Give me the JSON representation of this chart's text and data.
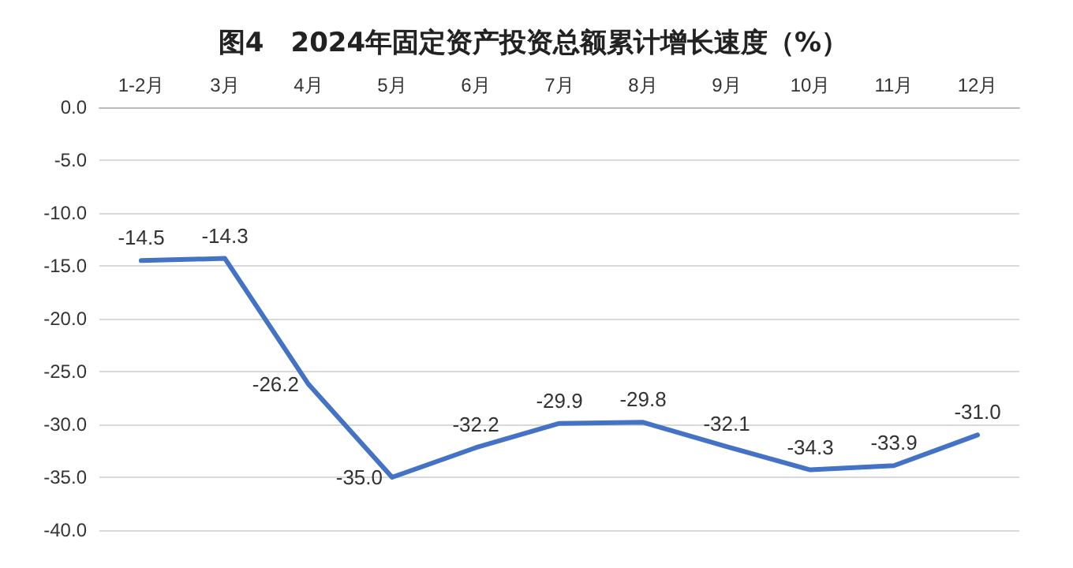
{
  "chart_data": {
    "type": "line",
    "title": "图4　2024年固定资产投资总额累计增长速度（%）",
    "categories": [
      "1-2月",
      "3月",
      "4月",
      "5月",
      "6月",
      "7月",
      "8月",
      "9月",
      "10月",
      "11月",
      "12月"
    ],
    "series": [
      {
        "color": "#4472c4",
        "values": [
          -14.5,
          -14.3,
          -26.2,
          -35.0,
          -32.2,
          -29.9,
          -29.8,
          -32.1,
          -34.3,
          -33.9,
          -31.0
        ],
        "value_labels": [
          "-14.5",
          "-14.3",
          "-26.2",
          "-35.0",
          "-32.2",
          "-29.9",
          "-29.8",
          "-32.1",
          "-34.3",
          "-33.9",
          "-31.0"
        ]
      }
    ],
    "ylim": [
      -40,
      0
    ],
    "yticks": [
      {
        "value": 0,
        "label": "0.0"
      },
      {
        "value": -5,
        "label": "-5.0"
      },
      {
        "value": -10,
        "label": "-10.0"
      },
      {
        "value": -15,
        "label": "-15.0"
      },
      {
        "value": -20,
        "label": "-20.0"
      },
      {
        "value": -25,
        "label": "-25.0"
      },
      {
        "value": -30,
        "label": "-30.0"
      },
      {
        "value": -35,
        "label": "-35.0"
      },
      {
        "value": -40,
        "label": "-40.0"
      }
    ],
    "grid": "y",
    "marker": "none",
    "line_style": "solid"
  }
}
